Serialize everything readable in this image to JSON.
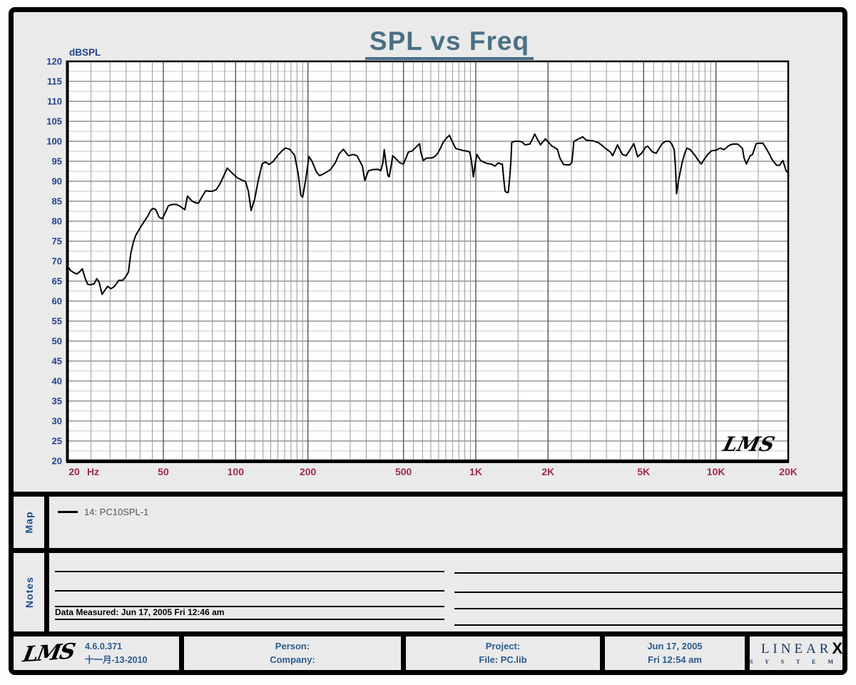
{
  "title": "SPL vs Freq",
  "colors": {
    "title": "#4a7086",
    "axis_y_labels": "#24418e",
    "axis_x_labels": "#9e2756",
    "curve": "#000000",
    "grid_minor_h": "#c9c9c9",
    "grid_major_h": "#5f5f5f",
    "grid_minor_v": "#989898",
    "grid_major_v": "#4a4a4a",
    "footer_text": "#2a5a8f"
  },
  "chart_data": {
    "type": "line",
    "title": "SPL vs Freq",
    "ylabel": "dBSPL",
    "x_unit_label": "Hz",
    "x_scale": "log",
    "xlim": [
      20,
      20000
    ],
    "ylim": [
      20,
      120
    ],
    "y_major_step": 5,
    "y_minor_step": 2.5,
    "grid": true,
    "watermark": "LMS",
    "x_major_ticks": [
      20,
      50,
      100,
      200,
      500,
      1000,
      2000,
      5000,
      10000,
      20000
    ],
    "x_major_labels": [
      "20",
      "50",
      "100",
      "200",
      "500",
      "1K",
      "2K",
      "5K",
      "10K",
      "20K"
    ],
    "x_minor_ticks": [
      25,
      30,
      35,
      40,
      45,
      60,
      70,
      80,
      90,
      110,
      120,
      130,
      140,
      150,
      160,
      170,
      180,
      190,
      250,
      300,
      350,
      400,
      450,
      550,
      600,
      650,
      700,
      750,
      800,
      850,
      900,
      950,
      1500,
      2500,
      3000,
      3500,
      4000,
      4500,
      5500,
      6000,
      6500,
      7000,
      7500,
      8000,
      8500,
      9000,
      9500,
      15000
    ],
    "series": [
      {
        "name": "14: PC10SPL-1",
        "color": "#000000",
        "points": [
          [
            20,
            68.6
          ],
          [
            20.6,
            67.6
          ],
          [
            21.2,
            67.1
          ],
          [
            21.8,
            66.8
          ],
          [
            22.4,
            67.3
          ],
          [
            23,
            68.1
          ],
          [
            23.6,
            65.8
          ],
          [
            24.2,
            64.2
          ],
          [
            25,
            64.1
          ],
          [
            25.8,
            64.4
          ],
          [
            26.4,
            65.6
          ],
          [
            27,
            64.8
          ],
          [
            27.8,
            61.7
          ],
          [
            28.6,
            62.8
          ],
          [
            29.3,
            63.7
          ],
          [
            30.2,
            63.1
          ],
          [
            31,
            63.5
          ],
          [
            31.7,
            64.1
          ],
          [
            32.6,
            65.2
          ],
          [
            33.8,
            65.2
          ],
          [
            34.8,
            66.0
          ],
          [
            35.8,
            67.3
          ],
          [
            36.6,
            72.0
          ],
          [
            37.5,
            74.7
          ],
          [
            38.4,
            76.5
          ],
          [
            39.2,
            77.4
          ],
          [
            40,
            78.3
          ],
          [
            41.5,
            79.8
          ],
          [
            43,
            81.2
          ],
          [
            44.5,
            82.9
          ],
          [
            45.5,
            83.2
          ],
          [
            46.5,
            82.9
          ],
          [
            48,
            81.0
          ],
          [
            49.5,
            80.6
          ],
          [
            51,
            82.2
          ],
          [
            52.5,
            83.9
          ],
          [
            54.5,
            84.2
          ],
          [
            56.5,
            84.2
          ],
          [
            58.5,
            83.8
          ],
          [
            60,
            83.3
          ],
          [
            61.5,
            82.9
          ],
          [
            63,
            86.3
          ],
          [
            64.5,
            85.6
          ],
          [
            66,
            85.0
          ],
          [
            68,
            84.6
          ],
          [
            70,
            84.5
          ],
          [
            72.3,
            86.0
          ],
          [
            75,
            87.6
          ],
          [
            77.5,
            87.5
          ],
          [
            80,
            87.5
          ],
          [
            83,
            87.9
          ],
          [
            86,
            89.3
          ],
          [
            89,
            91.2
          ],
          [
            92.3,
            93.3
          ],
          [
            95.4,
            92.4
          ],
          [
            98.5,
            91.6
          ],
          [
            102,
            90.8
          ],
          [
            107,
            90.2
          ],
          [
            110,
            89.9
          ],
          [
            113,
            87.5
          ],
          [
            116,
            82.7
          ],
          [
            120,
            85.5
          ],
          [
            124,
            90.0
          ],
          [
            129,
            94.4
          ],
          [
            133,
            94.8
          ],
          [
            138,
            94.2
          ],
          [
            143,
            94.9
          ],
          [
            150,
            96.5
          ],
          [
            156,
            97.6
          ],
          [
            161,
            98.3
          ],
          [
            168,
            98.0
          ],
          [
            176,
            96.5
          ],
          [
            182,
            92.0
          ],
          [
            187,
            86.5
          ],
          [
            190,
            86.0
          ],
          [
            196,
            90.5
          ],
          [
            202,
            96.2
          ],
          [
            208,
            95.0
          ],
          [
            217,
            92.3
          ],
          [
            224,
            91.4
          ],
          [
            235,
            92.0
          ],
          [
            248,
            92.9
          ],
          [
            260,
            94.6
          ],
          [
            270,
            96.9
          ],
          [
            281,
            98.0
          ],
          [
            295,
            96.4
          ],
          [
            309,
            96.7
          ],
          [
            320,
            96.4
          ],
          [
            337,
            93.8
          ],
          [
            345,
            90.2
          ],
          [
            357,
            92.6
          ],
          [
            371,
            92.9
          ],
          [
            392,
            93.0
          ],
          [
            402,
            92.6
          ],
          [
            410,
            94.5
          ],
          [
            416,
            97.9
          ],
          [
            424,
            94.0
          ],
          [
            431,
            91.4
          ],
          [
            436,
            91.1
          ],
          [
            444,
            93.8
          ],
          [
            451,
            96.4
          ],
          [
            467,
            95.5
          ],
          [
            483,
            94.6
          ],
          [
            500,
            94.3
          ],
          [
            512,
            95.8
          ],
          [
            524,
            97.3
          ],
          [
            544,
            97.6
          ],
          [
            563,
            98.5
          ],
          [
            583,
            99.4
          ],
          [
            592,
            97.0
          ],
          [
            604,
            95.2
          ],
          [
            625,
            95.8
          ],
          [
            645,
            95.8
          ],
          [
            662,
            95.9
          ],
          [
            678,
            96.3
          ],
          [
            694,
            97.0
          ],
          [
            712,
            98.2
          ],
          [
            731,
            99.7
          ],
          [
            755,
            100.8
          ],
          [
            777,
            101.5
          ],
          [
            790,
            100.5
          ],
          [
            806,
            99.4
          ],
          [
            825,
            98.2
          ],
          [
            845,
            98.0
          ],
          [
            863,
            97.9
          ],
          [
            884,
            97.7
          ],
          [
            903,
            97.6
          ],
          [
            923,
            97.5
          ],
          [
            944,
            97.3
          ],
          [
            960,
            95.0
          ],
          [
            977,
            91.1
          ],
          [
            995,
            94.5
          ],
          [
            1011,
            96.7
          ],
          [
            1030,
            95.9
          ],
          [
            1047,
            95.2
          ],
          [
            1070,
            94.9
          ],
          [
            1096,
            94.6
          ],
          [
            1125,
            94.4
          ],
          [
            1160,
            94.3
          ],
          [
            1201,
            93.8
          ],
          [
            1222,
            94.2
          ],
          [
            1245,
            94.6
          ],
          [
            1268,
            94.3
          ],
          [
            1290,
            94.3
          ],
          [
            1310,
            90.0
          ],
          [
            1325,
            87.5
          ],
          [
            1345,
            87.2
          ],
          [
            1365,
            87.2
          ],
          [
            1385,
            91.0
          ],
          [
            1400,
            95.0
          ],
          [
            1412,
            99.7
          ],
          [
            1430,
            99.9
          ],
          [
            1460,
            100.0
          ],
          [
            1510,
            100.0
          ],
          [
            1555,
            99.9
          ],
          [
            1604,
            99.1
          ],
          [
            1640,
            99.2
          ],
          [
            1680,
            99.3
          ],
          [
            1720,
            100.5
          ],
          [
            1760,
            101.8
          ],
          [
            1810,
            100.4
          ],
          [
            1860,
            99.1
          ],
          [
            1905,
            99.9
          ],
          [
            1950,
            100.6
          ],
          [
            2010,
            99.7
          ],
          [
            2075,
            98.8
          ],
          [
            2125,
            98.5
          ],
          [
            2190,
            97.9
          ],
          [
            2240,
            95.8
          ],
          [
            2320,
            94.2
          ],
          [
            2390,
            94.1
          ],
          [
            2460,
            94.1
          ],
          [
            2510,
            94.6
          ],
          [
            2535,
            97.0
          ],
          [
            2560,
            99.9
          ],
          [
            2620,
            100.3
          ],
          [
            2700,
            100.7
          ],
          [
            2790,
            101.1
          ],
          [
            2880,
            100.3
          ],
          [
            2980,
            100.2
          ],
          [
            3080,
            100.1
          ],
          [
            3230,
            99.7
          ],
          [
            3350,
            99.0
          ],
          [
            3470,
            98.2
          ],
          [
            3635,
            97.3
          ],
          [
            3715,
            96.4
          ],
          [
            3800,
            97.7
          ],
          [
            3890,
            99.1
          ],
          [
            3990,
            97.8
          ],
          [
            4080,
            96.7
          ],
          [
            4230,
            96.4
          ],
          [
            4390,
            97.9
          ],
          [
            4550,
            99.4
          ],
          [
            4640,
            97.7
          ],
          [
            4720,
            96.1
          ],
          [
            4900,
            97.0
          ],
          [
            5090,
            98.5
          ],
          [
            5200,
            98.8
          ],
          [
            5320,
            98.0
          ],
          [
            5450,
            97.3
          ],
          [
            5640,
            97.0
          ],
          [
            5800,
            98.2
          ],
          [
            5970,
            99.4
          ],
          [
            6170,
            100.0
          ],
          [
            6390,
            100.0
          ],
          [
            6540,
            99.4
          ],
          [
            6700,
            97.9
          ],
          [
            6780,
            94.0
          ],
          [
            6860,
            86.9
          ],
          [
            7000,
            90.5
          ],
          [
            7230,
            94.6
          ],
          [
            7400,
            96.8
          ],
          [
            7560,
            98.3
          ],
          [
            7820,
            97.9
          ],
          [
            8000,
            97.2
          ],
          [
            8200,
            96.4
          ],
          [
            8450,
            95.2
          ],
          [
            8690,
            94.3
          ],
          [
            8900,
            95.3
          ],
          [
            9150,
            96.4
          ],
          [
            9350,
            97.0
          ],
          [
            9570,
            97.6
          ],
          [
            9750,
            97.7
          ],
          [
            9950,
            97.7
          ],
          [
            10200,
            98.0
          ],
          [
            10400,
            98.3
          ],
          [
            10600,
            98.1
          ],
          [
            10800,
            97.9
          ],
          [
            11050,
            98.4
          ],
          [
            11300,
            98.9
          ],
          [
            11500,
            99.1
          ],
          [
            11750,
            99.3
          ],
          [
            12000,
            99.3
          ],
          [
            12300,
            99.3
          ],
          [
            12600,
            98.8
          ],
          [
            12900,
            98.2
          ],
          [
            13100,
            95.8
          ],
          [
            13400,
            94.3
          ],
          [
            13650,
            95.4
          ],
          [
            13900,
            96.4
          ],
          [
            14200,
            96.7
          ],
          [
            14450,
            98.0
          ],
          [
            14700,
            99.4
          ],
          [
            15000,
            99.5
          ],
          [
            15400,
            99.5
          ],
          [
            15700,
            99.5
          ],
          [
            16000,
            98.7
          ],
          [
            16400,
            97.6
          ],
          [
            16750,
            96.6
          ],
          [
            17100,
            95.5
          ],
          [
            17500,
            94.7
          ],
          [
            17900,
            94.0
          ],
          [
            18400,
            94.0
          ],
          [
            18700,
            94.6
          ],
          [
            19000,
            95.2
          ],
          [
            19300,
            93.9
          ],
          [
            19600,
            92.6
          ],
          [
            20000,
            92.1
          ]
        ]
      }
    ]
  },
  "map_section": {
    "label": "Map",
    "legend_text": "14: PC10SPL-1"
  },
  "notes_section": {
    "label": "Notes",
    "data_measured": "Data Measured: Jun 17, 2005  Fri 12:46 am"
  },
  "footer": {
    "lms_logo": "LMS",
    "version": "4.6.0.371",
    "date_stamp": "十一月-13-2010",
    "person_label": "Person:",
    "company_label": "Company:",
    "project_label": "Project:",
    "file_label": "File: PC.lib",
    "print_date": "Jun 17, 2005",
    "print_time": "Fri 12:54 am",
    "brand_linear": "LINEAR",
    "brand_x": "X",
    "brand_systems": "S Y S T E M S"
  }
}
